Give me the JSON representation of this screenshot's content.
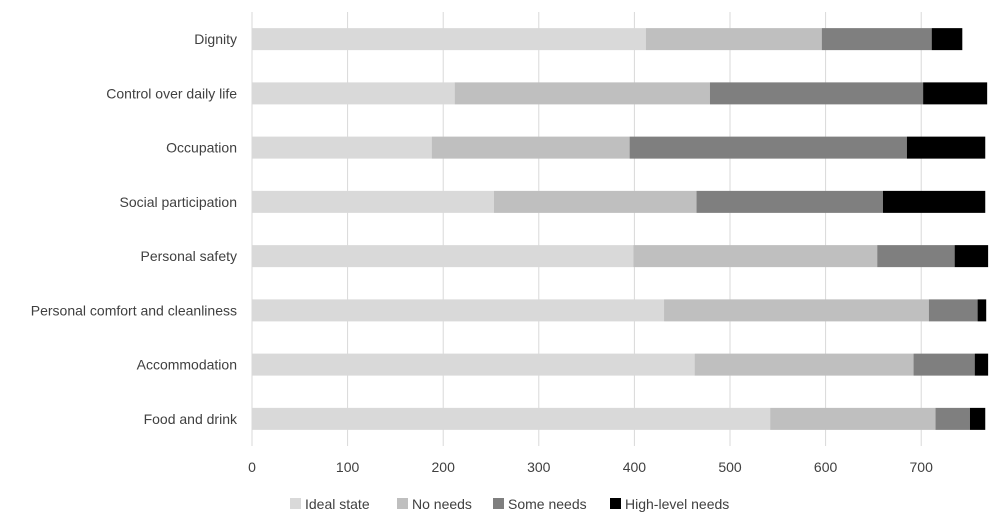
{
  "chart_data": {
    "type": "bar",
    "orientation": "horizontal",
    "stacked": true,
    "title": "",
    "xlabel": "",
    "ylabel": "",
    "xlim": [
      0,
      770
    ],
    "xticks": [
      0,
      100,
      200,
      300,
      400,
      500,
      600,
      700
    ],
    "grid": true,
    "legend_position": "bottom",
    "categories": [
      "Dignity",
      "Control over daily life",
      "Occupation",
      "Social participation",
      "Personal safety",
      "Personal comfort and cleanliness",
      "Accommodation",
      "Food and drink"
    ],
    "series": [
      {
        "name": "Ideal state",
        "color": "#d9d9d9",
        "values": [
          412,
          212,
          188,
          253,
          399,
          431,
          463,
          542
        ]
      },
      {
        "name": "No needs",
        "color": "#bfbfbf",
        "values": [
          184,
          267,
          207,
          212,
          255,
          277,
          229,
          173
        ]
      },
      {
        "name": "Some needs",
        "color": "#7f7f7f",
        "values": [
          115,
          223,
          290,
          195,
          81,
          51,
          64,
          36
        ]
      },
      {
        "name": "High-level needs",
        "color": "#000000",
        "values": [
          32,
          67,
          82,
          107,
          35,
          9,
          14,
          16
        ]
      }
    ]
  }
}
